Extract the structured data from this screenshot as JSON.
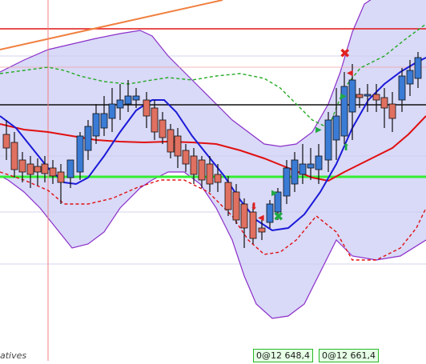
{
  "caption": "atives",
  "order_tags": [
    "0@12 648,4",
    "0@12 661,4"
  ],
  "colors": {
    "band_fill": "#ccccf5",
    "band_edge": "#8b2fc9",
    "candle_up": "#3a7bd5",
    "candle_down": "#e07060",
    "wick": "#111111",
    "fast_ma": "#1a1ad8",
    "slow_ma": "#e01010",
    "upper_env": "#22aa22",
    "lower_env": "#e01010",
    "hline_red": "#e01515",
    "hline_black": "#111111",
    "hline_green": "#33ee33",
    "trendline": "#f08040",
    "cursor_line": "#f08080",
    "grid": "#d0d4e8"
  },
  "markers": {
    "exit_icon": "x-cross-icon",
    "entry_icon": "arrow-icon"
  }
}
